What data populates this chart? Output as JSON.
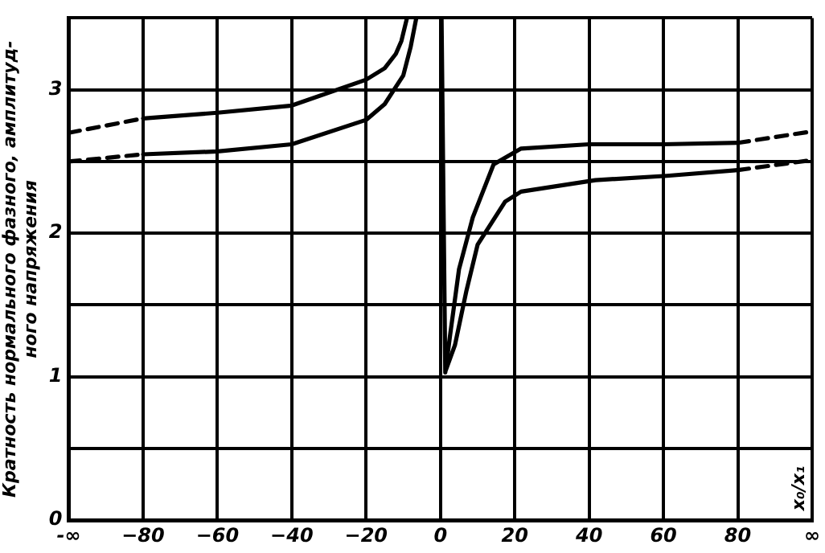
{
  "chart_data": {
    "type": "line",
    "ylabel": "Кратность нормального фазного, амплитуд-\nного напряжения",
    "annotations": [
      "x₀/x₁"
    ],
    "xlim": [
      -100,
      100
    ],
    "xticks": [
      {
        "value": -100,
        "label": "-∞"
      },
      -80,
      -60,
      -40,
      -20,
      0,
      20,
      40,
      60,
      80,
      {
        "value": 100,
        "label": "∞"
      }
    ],
    "ylim": [
      0,
      3.5
    ],
    "yticks": [
      0,
      {
        "value": 0.5,
        "label": null
      },
      1,
      {
        "value": 1.5,
        "label": null
      },
      2,
      {
        "value": 2.5,
        "label": null
      },
      3,
      {
        "value": 3.5,
        "label": null
      }
    ],
    "grid": true,
    "legend": false,
    "marker": "none",
    "series": [
      {
        "color": "#000000",
        "line_style": "solid",
        "x": [
          -80,
          -60,
          -40,
          -20,
          -15,
          -12,
          -10.5,
          -9,
          null,
          0.3,
          1.3,
          2.6,
          5,
          8.7,
          14.3,
          21.7,
          40,
          60,
          80
        ],
        "values": [
          2.8,
          2.84,
          2.89,
          3.07,
          3.15,
          3.25,
          3.34,
          3.5,
          null,
          3.5,
          1.03,
          1.29,
          1.75,
          2.11,
          2.48,
          2.59,
          2.62,
          2.62,
          2.63
        ]
      },
      {
        "color": "#000000",
        "line_style": "dashed",
        "x": [
          -100,
          -80,
          null,
          80,
          100
        ],
        "values": [
          2.7,
          2.8,
          null,
          2.63,
          2.71
        ]
      },
      {
        "color": "#000000",
        "line_style": "solid",
        "x": [
          -80,
          -60,
          -40,
          -20,
          -15,
          -10,
          -8,
          -6.5,
          null,
          1.5,
          3.9,
          7,
          10,
          17.4,
          21.7,
          41.7,
          60.9,
          80
        ],
        "values": [
          2.55,
          2.57,
          2.62,
          2.79,
          2.9,
          3.1,
          3.3,
          3.5,
          null,
          1.05,
          1.22,
          1.6,
          1.92,
          2.22,
          2.29,
          2.37,
          2.4,
          2.44
        ]
      },
      {
        "color": "#000000",
        "line_style": "dashed",
        "x": [
          -100,
          -80,
          null,
          80,
          100
        ],
        "values": [
          2.5,
          2.55,
          null,
          2.44,
          2.51
        ]
      }
    ]
  }
}
